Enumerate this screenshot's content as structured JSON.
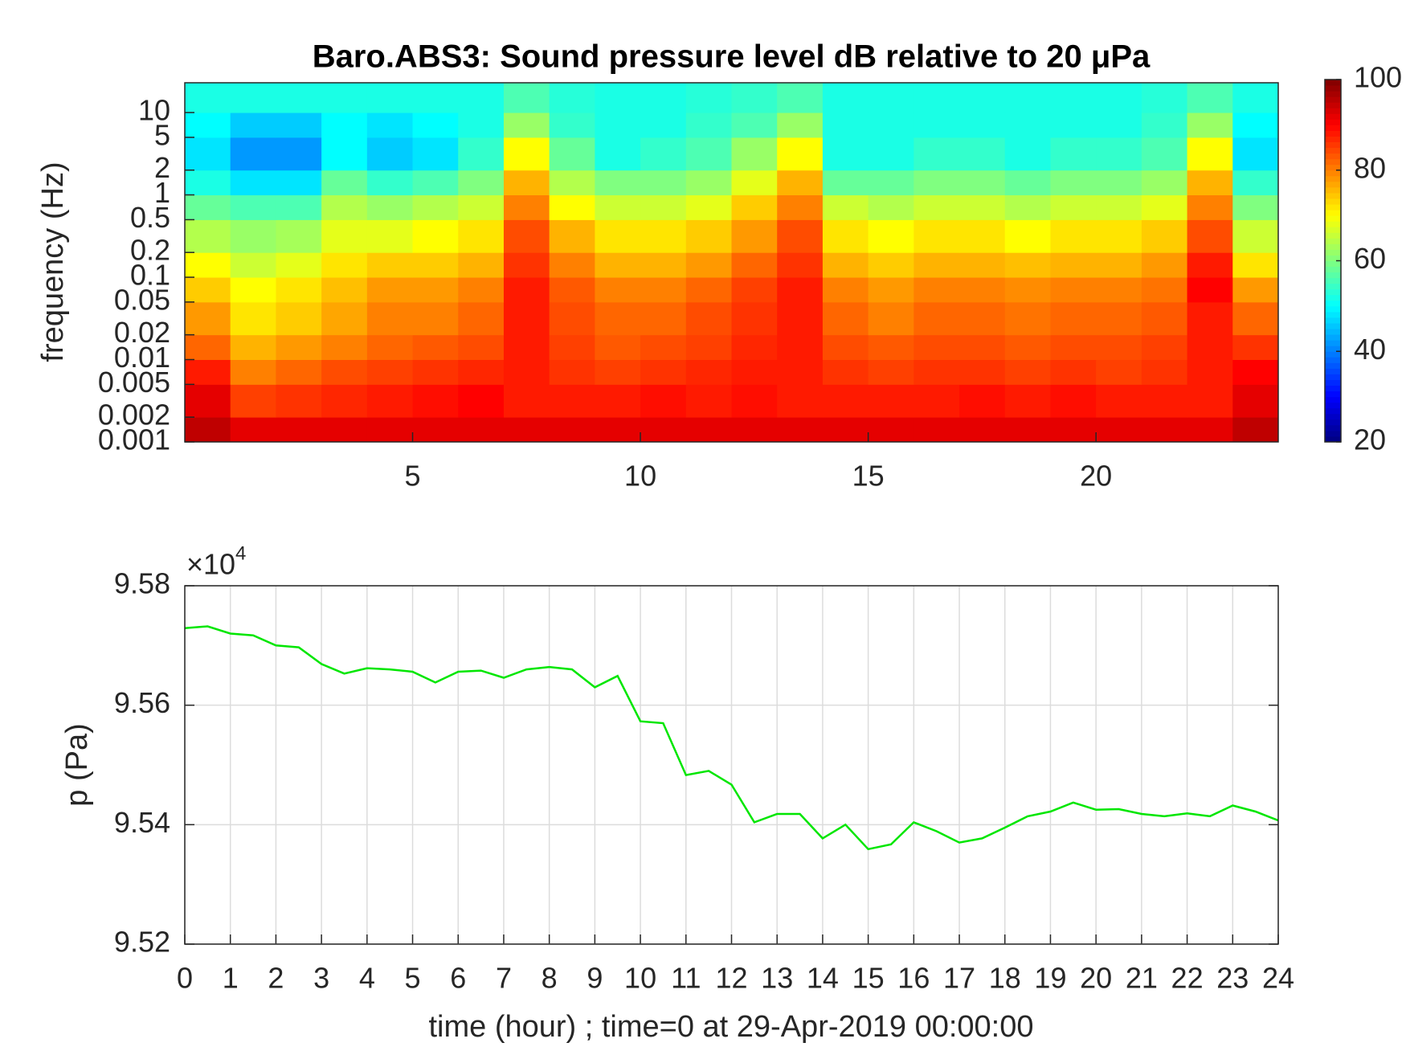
{
  "chart_data": [
    {
      "type": "heatmap",
      "title": "Baro.ABS3: Sound pressure level dB relative to 20 μPa",
      "ylabel": "frequency (Hz)",
      "colormap": "jet",
      "ylog": true,
      "xlim": [
        0,
        24
      ],
      "xticks": [
        5,
        10,
        15,
        20
      ],
      "ylim": [
        0.001,
        23
      ],
      "yticks": [
        0.001,
        0.002,
        0.005,
        0.01,
        0.02,
        0.05,
        0.1,
        0.2,
        0.5,
        1,
        2,
        5,
        10
      ],
      "clim": [
        20,
        100
      ],
      "cticks": [
        20,
        40,
        60,
        80,
        100
      ],
      "x_bins": [
        0,
        1,
        2,
        3,
        4,
        5,
        6,
        7,
        8,
        9,
        10,
        11,
        12,
        13,
        14,
        15,
        16,
        17,
        18,
        19,
        20,
        21,
        22,
        23,
        24
      ],
      "y_bins": [
        0.001,
        0.002,
        0.005,
        0.01,
        0.02,
        0.05,
        0.1,
        0.2,
        0.5,
        1,
        2,
        5,
        10,
        23
      ],
      "z": [
        [
          95,
          92,
          92,
          92,
          92,
          92,
          92,
          92,
          92,
          92,
          92,
          92,
          92,
          92,
          92,
          92,
          92,
          92,
          92,
          92,
          92,
          92,
          92,
          95
        ],
        [
          92,
          85,
          86,
          87,
          88,
          89,
          90,
          88,
          88,
          88,
          89,
          88,
          89,
          88,
          88,
          88,
          88,
          89,
          88,
          89,
          88,
          88,
          88,
          92
        ],
        [
          88,
          80,
          82,
          84,
          85,
          86,
          87,
          88,
          86,
          85,
          86,
          87,
          88,
          88,
          86,
          85,
          86,
          86,
          85,
          86,
          85,
          86,
          88,
          90
        ],
        [
          82,
          76,
          78,
          80,
          82,
          83,
          84,
          88,
          85,
          83,
          84,
          85,
          87,
          88,
          84,
          83,
          84,
          84,
          83,
          84,
          84,
          85,
          88,
          86
        ],
        [
          78,
          72,
          74,
          77,
          80,
          80,
          82,
          88,
          84,
          82,
          82,
          84,
          86,
          88,
          82,
          80,
          82,
          82,
          81,
          82,
          82,
          83,
          88,
          82
        ],
        [
          74,
          70,
          72,
          75,
          78,
          78,
          80,
          88,
          83,
          80,
          80,
          82,
          85,
          88,
          80,
          78,
          80,
          80,
          79,
          80,
          80,
          81,
          90,
          78
        ],
        [
          70,
          66,
          68,
          72,
          74,
          74,
          76,
          86,
          80,
          76,
          76,
          78,
          82,
          86,
          76,
          74,
          76,
          76,
          75,
          76,
          76,
          78,
          88,
          72
        ],
        [
          64,
          62,
          63,
          68,
          68,
          70,
          72,
          84,
          76,
          72,
          72,
          74,
          78,
          84,
          72,
          70,
          72,
          72,
          70,
          72,
          72,
          74,
          84,
          66
        ],
        [
          58,
          56,
          56,
          64,
          62,
          64,
          66,
          80,
          70,
          66,
          66,
          68,
          74,
          80,
          66,
          64,
          66,
          66,
          64,
          66,
          66,
          68,
          80,
          60
        ],
        [
          52,
          48,
          48,
          58,
          54,
          56,
          60,
          76,
          64,
          60,
          60,
          62,
          68,
          76,
          58,
          58,
          60,
          60,
          58,
          60,
          60,
          62,
          76,
          54
        ],
        [
          48,
          42,
          42,
          50,
          46,
          48,
          54,
          70,
          58,
          52,
          54,
          56,
          62,
          70,
          52,
          52,
          54,
          54,
          52,
          54,
          54,
          56,
          70,
          48
        ],
        [
          50,
          46,
          46,
          50,
          48,
          50,
          52,
          62,
          54,
          52,
          52,
          54,
          56,
          62,
          52,
          52,
          52,
          52,
          52,
          52,
          52,
          54,
          62,
          50
        ],
        [
          52,
          52,
          52,
          52,
          52,
          52,
          52,
          56,
          53,
          52,
          52,
          53,
          54,
          56,
          52,
          52,
          52,
          52,
          52,
          52,
          52,
          53,
          56,
          52
        ]
      ]
    },
    {
      "type": "line",
      "ylabel": "p (Pa)",
      "xlabel": "time (hour) ; time=0 at 29-Apr-2019 00:00:00",
      "y_multiplier": {
        "base": "×10",
        "exponent": 4
      },
      "grid": true,
      "xlim": [
        0,
        24
      ],
      "xticks": [
        0,
        1,
        2,
        3,
        4,
        5,
        6,
        7,
        8,
        9,
        10,
        11,
        12,
        13,
        14,
        15,
        16,
        17,
        18,
        19,
        20,
        21,
        22,
        23,
        24
      ],
      "ylim": [
        9.52,
        9.58
      ],
      "yticks": [
        9.52,
        9.54,
        9.56,
        9.58
      ],
      "x": [
        0,
        0.5,
        1,
        1.5,
        2,
        2.5,
        3,
        3.5,
        4,
        4.5,
        5,
        5.5,
        6,
        6.5,
        7,
        7.5,
        8,
        8.5,
        9,
        9.5,
        10,
        10.5,
        11,
        11.5,
        12,
        12.5,
        13,
        13.5,
        14,
        14.5,
        15,
        15.5,
        16,
        16.5,
        17,
        17.5,
        18,
        18.5,
        19,
        19.5,
        20,
        20.5,
        21,
        21.5,
        22,
        22.5,
        23,
        23.5,
        24
      ],
      "series": [
        {
          "color": "#00e600",
          "values": [
            9.5729,
            9.5732,
            9.572,
            9.5717,
            9.57,
            9.5697,
            9.5669,
            9.5653,
            9.5662,
            9.566,
            9.5656,
            9.5638,
            9.5656,
            9.5658,
            9.5646,
            9.566,
            9.5664,
            9.566,
            9.563,
            9.5649,
            9.5573,
            9.557,
            9.5483,
            9.549,
            9.5467,
            9.5404,
            9.5418,
            9.5418,
            9.5377,
            9.54,
            9.5359,
            9.5367,
            9.5404,
            9.5389,
            9.537,
            9.5377,
            9.5395,
            9.5414,
            9.5422,
            9.5437,
            9.5425,
            9.5426,
            9.5418,
            9.5414,
            9.5419,
            9.5414,
            9.5432,
            9.5422,
            9.5407
          ]
        }
      ]
    }
  ]
}
